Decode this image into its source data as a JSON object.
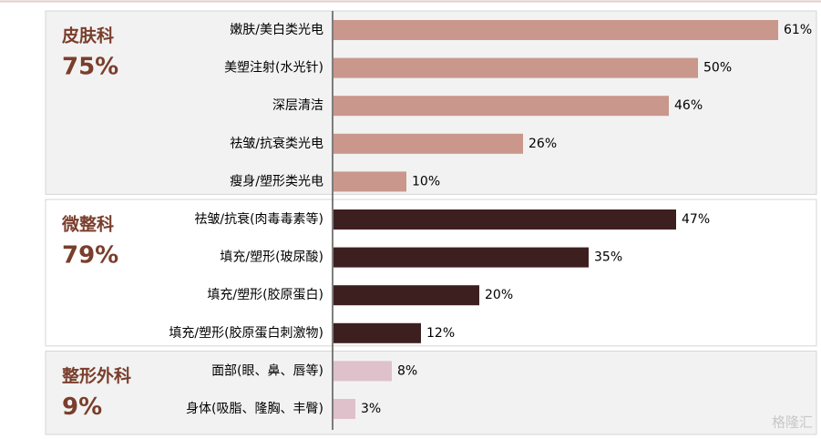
{
  "chart_data": {
    "type": "bar",
    "xlim": [
      0,
      65
    ],
    "watermark": "格隆汇",
    "groups": [
      {
        "name": "皮肤科",
        "share": "75%",
        "color": "#c9978b",
        "background": "#f2f2f2",
        "categories": [
          "嫩肤/美白类光电",
          "美塑注射(水光针)",
          "深层清洁",
          "祛皱/抗衰类光电",
          "瘦身/塑形类光电"
        ],
        "values": [
          61,
          50,
          46,
          26,
          10
        ],
        "value_labels": [
          "61%",
          "50%",
          "46%",
          "26%",
          "10%"
        ]
      },
      {
        "name": "微整科",
        "share": "79%",
        "color": "#3e1f20",
        "background": "#ffffff",
        "categories": [
          "祛皱/抗衰(肉毒毒素等)",
          "填充/塑形(玻尿酸)",
          "填充/塑形(胶原蛋白)",
          "填充/塑形(胶原蛋白刺激物)"
        ],
        "values": [
          47,
          35,
          20,
          12
        ],
        "value_labels": [
          "47%",
          "35%",
          "20%",
          "12%"
        ]
      },
      {
        "name": "整形外科",
        "share": "9%",
        "color": "#dfc1cb",
        "background": "#f2f2f2",
        "categories": [
          "面部(眼、鼻、唇等)",
          "身体(吸脂、隆胸、丰臀)"
        ],
        "values": [
          8,
          3
        ],
        "value_labels": [
          "8%",
          "3%"
        ]
      }
    ]
  }
}
